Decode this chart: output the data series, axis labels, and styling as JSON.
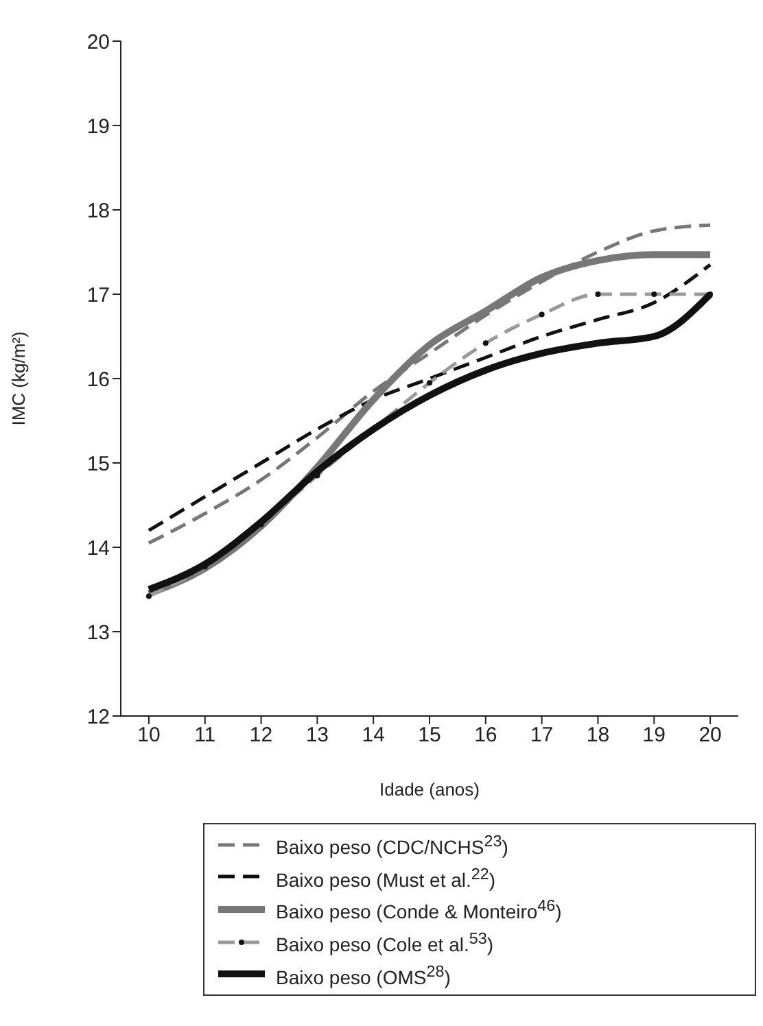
{
  "chart_data": {
    "type": "line",
    "xlabel": "Idade (anos)",
    "ylabel": "IMC (kg/m²)",
    "x": [
      10,
      11,
      12,
      13,
      14,
      15,
      16,
      17,
      18,
      19,
      20
    ],
    "xlim": [
      9.5,
      20.5
    ],
    "xticks": [
      10,
      11,
      12,
      13,
      14,
      15,
      16,
      17,
      18,
      19,
      20
    ],
    "ylim": [
      12,
      20
    ],
    "yticks": [
      12,
      13,
      14,
      15,
      16,
      17,
      18,
      19,
      20
    ],
    "grid": false,
    "legend": "bottom",
    "series": [
      {
        "name": "Baixo peso (CDC/NCHS$^{23}$)",
        "color": "#777777",
        "line_style": "dashed",
        "marker": "none",
        "values": [
          14.05,
          14.4,
          14.8,
          15.3,
          15.85,
          16.3,
          16.75,
          17.15,
          17.5,
          17.75,
          17.82
        ]
      },
      {
        "name": "Baixo peso (Must et al.$^{22}$)",
        "color": "#111111",
        "line_style": "dashed",
        "marker": "none",
        "values": [
          14.2,
          14.6,
          15.0,
          15.4,
          15.75,
          16.0,
          16.25,
          16.5,
          16.7,
          16.9,
          17.35
        ]
      },
      {
        "name": "Baixo peso (Conde & Monteiro$^{46}$)",
        "color": "#777777",
        "line_style": "solid",
        "marker": "none",
        "values": [
          13.45,
          13.75,
          14.25,
          14.95,
          15.75,
          16.4,
          16.8,
          17.2,
          17.4,
          17.47,
          17.47
        ]
      },
      {
        "name": "Baixo peso (Cole et al.$^{53}$)",
        "color": "#999999",
        "line_style": "dashed",
        "marker": "circle",
        "values": [
          13.42,
          13.77,
          14.27,
          14.85,
          15.4,
          15.95,
          16.42,
          16.76,
          17.0,
          17.0,
          17.0
        ]
      },
      {
        "name": "Baixo peso (OMS$^{28}$)",
        "color": "#111111",
        "line_style": "solid",
        "marker": "none",
        "values": [
          13.5,
          13.8,
          14.3,
          14.9,
          15.4,
          15.8,
          16.1,
          16.3,
          16.42,
          16.5,
          17.0
        ]
      }
    ]
  }
}
